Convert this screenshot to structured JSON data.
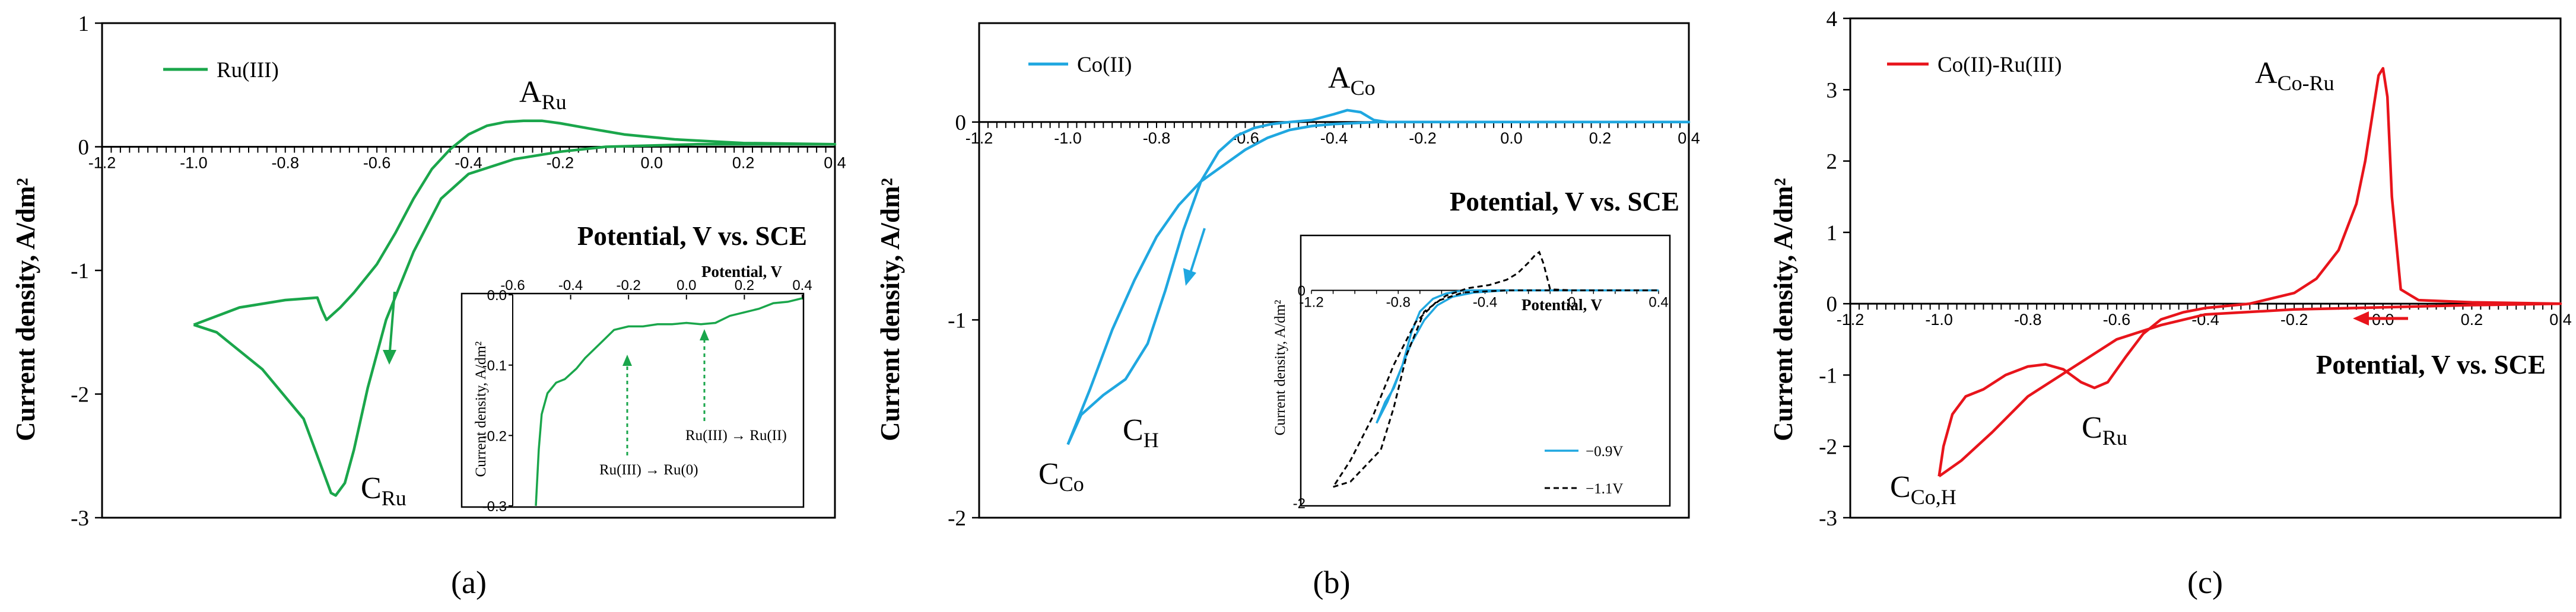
{
  "colors": {
    "a": "#1aa64b",
    "b": "#1fa7e0",
    "c": "#e8141b",
    "axis": "#000000"
  },
  "panel_labels": [
    "(a)",
    "(b)",
    "(c)"
  ],
  "chart_data": [
    {
      "type": "line",
      "panel": "a",
      "title": "",
      "xlabel": "Potential, V vs. SCE",
      "ylabel": "Current density, A/dm²",
      "xlim": [
        -1.2,
        0.4
      ],
      "ylim": [
        -3,
        1
      ],
      "xticks": [
        -1.2,
        -1.0,
        -0.8,
        -0.6,
        -0.4,
        -0.2,
        0.0,
        0.2,
        0.4
      ],
      "xtick_labels": [
        "-1.2",
        "-1.0",
        "-0.8",
        "-0.6",
        "-0.4",
        "-0.2",
        "0.0",
        "0.2",
        "0.4"
      ],
      "yticks": [
        1,
        0,
        -1,
        -2,
        -3
      ],
      "ytick_labels": [
        "1",
        "0",
        "-1",
        "-2",
        "-3"
      ],
      "legend": [
        "Ru(III)"
      ],
      "annotations": [
        {
          "main": "A",
          "sub": "Ru",
          "x": -0.26,
          "y": 0.33
        },
        {
          "main": "C",
          "sub": "Ru",
          "x": -0.74,
          "y": -3.0
        }
      ],
      "arrows": [
        {
          "from": [
            -0.62,
            -1.18
          ],
          "to": [
            -0.64,
            -1.78
          ]
        }
      ],
      "series": [
        {
          "name": "Ru(III)",
          "x": [
            -1.0,
            -0.9,
            -0.8,
            -0.73,
            -0.72,
            -0.71,
            -0.68,
            -0.65,
            -0.6,
            -0.56,
            -0.52,
            -0.48,
            -0.44,
            -0.4,
            -0.36,
            -0.32,
            -0.28,
            -0.24,
            -0.2,
            -0.14,
            -0.06,
            0.05,
            0.2,
            0.4,
            0.3,
            0.1,
            0.0,
            -0.1,
            -0.2,
            -0.3,
            -0.4,
            -0.46,
            -0.52,
            -0.58,
            -0.62,
            -0.65,
            -0.67,
            -0.69,
            -0.7,
            -0.72,
            -0.76,
            -0.85,
            -0.95,
            -1.0
          ],
          "y": [
            -1.44,
            -1.3,
            -1.24,
            -1.22,
            -1.32,
            -1.4,
            -1.3,
            -1.18,
            -0.95,
            -0.7,
            -0.42,
            -0.18,
            -0.02,
            0.1,
            0.17,
            0.2,
            0.21,
            0.21,
            0.19,
            0.15,
            0.1,
            0.06,
            0.03,
            0.02,
            0.02,
            0.02,
            0.01,
            0.0,
            -0.04,
            -0.1,
            -0.22,
            -0.42,
            -0.85,
            -1.4,
            -1.95,
            -2.45,
            -2.72,
            -2.82,
            -2.8,
            -2.6,
            -2.2,
            -1.8,
            -1.5,
            -1.44
          ]
        }
      ],
      "inset": {
        "xlabel": "Potential, V",
        "ylabel": "Current density, A/dm²",
        "xlim": [
          -0.6,
          0.4
        ],
        "ylim": [
          -0.3,
          0
        ],
        "xticks": [
          -0.6,
          -0.4,
          -0.2,
          0.0,
          0.2,
          0.4
        ],
        "xtick_labels": [
          "-0.6",
          "-0.4",
          "-0.2",
          "0.0",
          "0.2",
          "0.4"
        ],
        "yticks": [
          0,
          -0.1,
          -0.2,
          -0.3
        ],
        "ytick_labels": [
          "0.0",
          "-0.1",
          "-0.2",
          "-0.3"
        ],
        "notes": [
          "Ru(III) → Ru(0)",
          "Ru(III) → Ru(II)"
        ],
        "series": [
          {
            "name": "Ru(III)",
            "x": [
              -0.52,
              -0.51,
              -0.5,
              -0.48,
              -0.45,
              -0.42,
              -0.38,
              -0.35,
              -0.3,
              -0.25,
              -0.2,
              -0.15,
              -0.1,
              -0.05,
              0.0,
              0.05,
              0.1,
              0.15,
              0.2,
              0.25,
              0.3,
              0.35,
              0.4
            ],
            "y": [
              -0.3,
              -0.22,
              -0.17,
              -0.14,
              -0.125,
              -0.12,
              -0.105,
              -0.09,
              -0.07,
              -0.05,
              -0.045,
              -0.045,
              -0.042,
              -0.042,
              -0.04,
              -0.042,
              -0.04,
              -0.03,
              -0.025,
              -0.02,
              -0.012,
              -0.01,
              -0.005
            ]
          }
        ]
      }
    },
    {
      "type": "line",
      "panel": "b",
      "title": "",
      "xlabel": "Potential, V vs. SCE",
      "ylabel": "Current density, A/dm²",
      "xlim": [
        -1.2,
        0.4
      ],
      "ylim": [
        -2,
        0.5
      ],
      "xticks": [
        -1.2,
        -1.0,
        -0.8,
        -0.6,
        -0.4,
        -0.2,
        0.0,
        0.2,
        0.4
      ],
      "xtick_labels": [
        "-1.2",
        "-1.0",
        "-0.8",
        "-0.6",
        "-0.4",
        "-0.2",
        "0.0",
        "0.2",
        "0.4"
      ],
      "yticks": [
        0,
        -1,
        -2
      ],
      "ytick_labels": [
        "0",
        "-1",
        "-2"
      ],
      "legend": [
        "Co(II)"
      ],
      "annotations": [
        {
          "main": "A",
          "sub": "Co",
          "x": -0.43,
          "y": 0.15
        },
        {
          "main": "C",
          "sub": "Co",
          "x": -1.05,
          "y": -1.83
        },
        {
          "main": "C",
          "sub": "H",
          "x": -0.86,
          "y": -1.5
        }
      ],
      "arrows": [
        {
          "from": [
            -0.69,
            -0.55
          ],
          "to": [
            -0.75,
            -0.82
          ]
        }
      ],
      "series": [
        {
          "name": "Co(II)",
          "x": [
            -1.0,
            -0.97,
            -0.92,
            -0.87,
            -0.82,
            -0.78,
            -0.74,
            -0.7,
            -0.66,
            -0.62,
            -0.58,
            -0.54,
            -0.5,
            -0.45,
            -0.4,
            -0.37,
            -0.34,
            -0.31,
            -0.28,
            -0.2,
            0.0,
            0.2,
            0.4,
            0.2,
            0.0,
            -0.2,
            -0.3,
            -0.4,
            -0.45,
            -0.5,
            -0.55,
            -0.6,
            -0.65,
            -0.7,
            -0.75,
            -0.8,
            -0.85,
            -0.9,
            -0.95,
            -1.0
          ],
          "y": [
            -1.63,
            -1.48,
            -1.38,
            -1.3,
            -1.12,
            -0.85,
            -0.55,
            -0.3,
            -0.15,
            -0.07,
            -0.03,
            -0.01,
            0.0,
            0.01,
            0.04,
            0.06,
            0.05,
            0.01,
            0.0,
            0.0,
            0.0,
            0.0,
            0.0,
            0.0,
            0.0,
            0.0,
            0.0,
            -0.01,
            -0.02,
            -0.04,
            -0.08,
            -0.14,
            -0.22,
            -0.3,
            -0.42,
            -0.58,
            -0.8,
            -1.05,
            -1.35,
            -1.63
          ]
        }
      ],
      "inset": {
        "xlabel": "Potential, V",
        "ylabel": "Current density, A/dm²",
        "xlim": [
          -1.2,
          0.4
        ],
        "ylim": [
          -2,
          0.5
        ],
        "xticks": [
          -1.2,
          -0.8,
          -0.4,
          0.0,
          0.4
        ],
        "xtick_labels": [
          "-1.2",
          "-0.8",
          "-0.4",
          "0",
          "0.4"
        ],
        "yticks": [
          0,
          -2
        ],
        "ytick_labels": [
          "0",
          "-2"
        ],
        "legend": [
          "−0.9V",
          "−1.1V"
        ],
        "series": [
          {
            "name": "−0.9V",
            "x": [
              -0.9,
              -0.86,
              -0.82,
              -0.78,
              -0.74,
              -0.7,
              -0.64,
              -0.58,
              -0.5,
              -0.4,
              -0.3,
              0.0,
              0.4,
              0.0,
              -0.3,
              -0.45,
              -0.55,
              -0.62,
              -0.68,
              -0.74,
              -0.8,
              -0.85,
              -0.9
            ],
            "y": [
              -1.25,
              -1.05,
              -0.92,
              -0.7,
              -0.4,
              -0.2,
              -0.08,
              -0.03,
              0.0,
              0.0,
              0.0,
              0.0,
              0.0,
              0.0,
              0.0,
              -0.02,
              -0.06,
              -0.14,
              -0.28,
              -0.5,
              -0.8,
              -1.05,
              -1.25
            ]
          },
          {
            "name": "−1.1V",
            "x": [
              -1.1,
              -1.02,
              -0.95,
              -0.88,
              -0.82,
              -0.76,
              -0.68,
              -0.58,
              -0.48,
              -0.38,
              -0.3,
              -0.25,
              -0.2,
              -0.17,
              -0.15,
              -0.13,
              -0.1,
              0.0,
              0.4,
              0.0,
              -0.3,
              -0.5,
              -0.62,
              -0.72,
              -0.82,
              -0.92,
              -1.02,
              -1.1
            ],
            "y": [
              -1.85,
              -1.8,
              -1.65,
              -1.5,
              -1.1,
              -0.6,
              -0.2,
              -0.05,
              0.02,
              0.05,
              0.1,
              0.16,
              0.26,
              0.33,
              0.36,
              0.25,
              0.01,
              0.0,
              0.0,
              0.0,
              0.0,
              -0.02,
              -0.1,
              -0.3,
              -0.7,
              -1.2,
              -1.6,
              -1.85
            ]
          }
        ]
      }
    },
    {
      "type": "line",
      "panel": "c",
      "title": "",
      "xlabel": "Potential, V vs. SCE",
      "ylabel": "Current density, A/dm²",
      "xlim": [
        -1.2,
        0.4
      ],
      "ylim": [
        -3,
        4
      ],
      "xticks": [
        -1.2,
        -1.0,
        -0.8,
        -0.6,
        -0.4,
        -0.2,
        0.0,
        0.2,
        0.4
      ],
      "xtick_labels": [
        "-1.2",
        "-1.0",
        "-0.8",
        "-0.6",
        "-0.4",
        "-0.2",
        "0.0",
        "0.2",
        "0.4"
      ],
      "yticks": [
        4,
        3,
        2,
        1,
        0,
        -1,
        -2,
        -3
      ],
      "ytick_labels": [
        "4",
        "3",
        "2",
        "1",
        "0",
        "-1",
        "-2",
        "-3"
      ],
      "legend": [
        "Co(II)-Ru(III)"
      ],
      "annotations": [
        {
          "main": "A",
          "sub": "Co-Ru",
          "x": -0.21,
          "y": 3.5
        },
        {
          "main": "C",
          "sub": "Ru",
          "x": -0.7,
          "y": -1.7
        },
        {
          "main": "C",
          "sub": "Co,H",
          "x": -1.03,
          "y": -2.65
        }
      ],
      "arrows": [
        {
          "from": [
            0.09,
            -0.18
          ],
          "to": [
            -0.07,
            -0.18
          ]
        }
      ],
      "series": [
        {
          "name": "Co(II)-Ru(III)",
          "x": [
            -1.0,
            -0.99,
            -0.97,
            -0.94,
            -0.9,
            -0.85,
            -0.8,
            -0.76,
            -0.72,
            -0.68,
            -0.65,
            -0.62,
            -0.58,
            -0.54,
            -0.5,
            -0.45,
            -0.4,
            -0.3,
            -0.2,
            -0.15,
            -0.1,
            -0.06,
            -0.04,
            -0.02,
            -0.01,
            0.0,
            0.01,
            0.02,
            0.04,
            0.08,
            0.2,
            0.4,
            0.2,
            0.0,
            -0.2,
            -0.4,
            -0.5,
            -0.6,
            -0.7,
            -0.8,
            -0.88,
            -0.95,
            -1.0
          ],
          "y": [
            -2.42,
            -2.0,
            -1.55,
            -1.3,
            -1.2,
            -1.0,
            -0.88,
            -0.85,
            -0.92,
            -1.1,
            -1.18,
            -1.1,
            -0.75,
            -0.42,
            -0.22,
            -0.12,
            -0.06,
            0.0,
            0.15,
            0.35,
            0.75,
            1.4,
            2.0,
            2.8,
            3.2,
            3.3,
            2.9,
            1.5,
            0.2,
            0.05,
            0.02,
            0.0,
            -0.02,
            -0.05,
            -0.08,
            -0.15,
            -0.3,
            -0.5,
            -0.9,
            -1.3,
            -1.8,
            -2.2,
            -2.42
          ]
        }
      ]
    }
  ]
}
